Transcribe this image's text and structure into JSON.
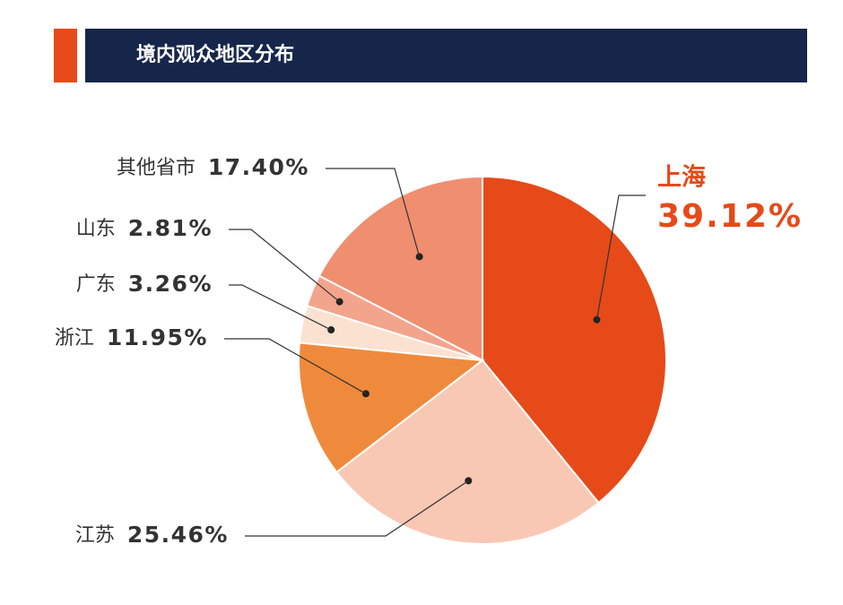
{
  "chart_data": {
    "type": "pie",
    "title": "境内观众地区分布",
    "categories": [
      "上海",
      "江苏",
      "浙江",
      "广东",
      "山东",
      "其他省市"
    ],
    "values": [
      39.12,
      25.46,
      11.95,
      3.26,
      2.81,
      17.4
    ],
    "value_labels": [
      "39.12%",
      "25.46%",
      "11.95%",
      "3.26%",
      "2.81%",
      "17.40%"
    ],
    "colors": [
      "#e64a19",
      "#f8c8b4",
      "#ef8a3c",
      "#fbe1cf",
      "#f2a58c",
      "#f08e70"
    ]
  }
}
